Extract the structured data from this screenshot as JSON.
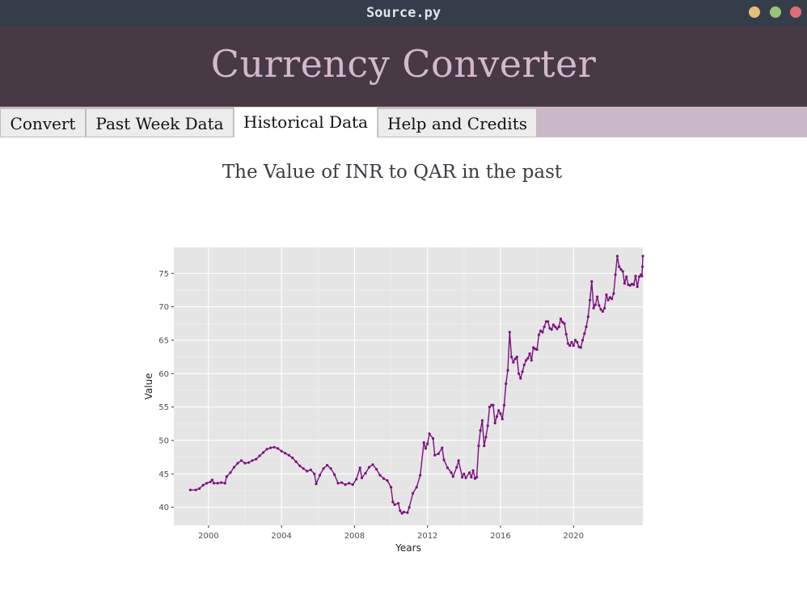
{
  "window": {
    "title": "Source.py",
    "buttons": {
      "colors": [
        "#e5c07b",
        "#98c379",
        "#e06c75"
      ]
    }
  },
  "app": {
    "title": "Currency Converter"
  },
  "tabs": [
    {
      "label": "Convert",
      "active": false
    },
    {
      "label": "Past Week Data",
      "active": false
    },
    {
      "label": "Historical Data",
      "active": true
    },
    {
      "label": "Help and Credits",
      "active": false
    }
  ],
  "main": {
    "heading": "The Value of INR to QAR in the past"
  },
  "chart_data": {
    "type": "line",
    "title": "",
    "xlabel": "Years",
    "ylabel": "Value",
    "xlim": [
      1998.1,
      2023.8
    ],
    "ylim": [
      37.3,
      78.9
    ],
    "xticks": [
      2000,
      2004,
      2008,
      2012,
      2016,
      2020
    ],
    "yticks": [
      40,
      45,
      50,
      55,
      60,
      65,
      70,
      75
    ],
    "grid": true,
    "background": "#e5e5e5",
    "line_color": "#7b0f7f",
    "series": [
      {
        "points": [
          [
            1999.0,
            42.6
          ],
          [
            1999.3,
            42.6
          ],
          [
            1999.5,
            42.8
          ],
          [
            1999.7,
            43.3
          ],
          [
            1999.9,
            43.6
          ],
          [
            2000.1,
            43.8
          ],
          [
            2000.2,
            44.1
          ],
          [
            2000.3,
            43.6
          ],
          [
            2000.5,
            43.6
          ],
          [
            2000.7,
            43.7
          ],
          [
            2000.9,
            43.6
          ],
          [
            2001.0,
            44.6
          ],
          [
            2001.2,
            45.2
          ],
          [
            2001.4,
            46.0
          ],
          [
            2001.6,
            46.6
          ],
          [
            2001.8,
            47.0
          ],
          [
            2002.0,
            46.6
          ],
          [
            2002.2,
            46.7
          ],
          [
            2002.4,
            47.0
          ],
          [
            2002.6,
            47.2
          ],
          [
            2002.8,
            47.7
          ],
          [
            2003.0,
            48.2
          ],
          [
            2003.2,
            48.7
          ],
          [
            2003.4,
            48.9
          ],
          [
            2003.6,
            49.0
          ],
          [
            2003.8,
            48.8
          ],
          [
            2004.0,
            48.4
          ],
          [
            2004.2,
            48.1
          ],
          [
            2004.4,
            47.8
          ],
          [
            2004.6,
            47.4
          ],
          [
            2004.8,
            46.8
          ],
          [
            2005.0,
            46.2
          ],
          [
            2005.2,
            45.8
          ],
          [
            2005.4,
            45.4
          ],
          [
            2005.6,
            45.6
          ],
          [
            2005.8,
            45.0
          ],
          [
            2005.9,
            43.5
          ],
          [
            2006.1,
            44.8
          ],
          [
            2006.3,
            45.8
          ],
          [
            2006.5,
            46.3
          ],
          [
            2006.7,
            45.8
          ],
          [
            2006.9,
            44.9
          ],
          [
            2007.1,
            43.6
          ],
          [
            2007.3,
            43.7
          ],
          [
            2007.5,
            43.4
          ],
          [
            2007.7,
            43.6
          ],
          [
            2007.9,
            43.4
          ],
          [
            2008.1,
            44.2
          ],
          [
            2008.3,
            45.9
          ],
          [
            2008.4,
            44.4
          ],
          [
            2008.6,
            45.1
          ],
          [
            2008.8,
            46.0
          ],
          [
            2009.0,
            46.4
          ],
          [
            2009.2,
            45.7
          ],
          [
            2009.4,
            44.8
          ],
          [
            2009.6,
            44.3
          ],
          [
            2009.8,
            44.0
          ],
          [
            2010.0,
            43.0
          ],
          [
            2010.1,
            40.8
          ],
          [
            2010.2,
            40.4
          ],
          [
            2010.4,
            40.6
          ],
          [
            2010.5,
            39.5
          ],
          [
            2010.6,
            39.1
          ],
          [
            2010.7,
            39.3
          ],
          [
            2010.9,
            39.2
          ],
          [
            2011.0,
            40.0
          ],
          [
            2011.2,
            42.1
          ],
          [
            2011.4,
            43.0
          ],
          [
            2011.6,
            44.8
          ],
          [
            2011.8,
            49.7
          ],
          [
            2011.9,
            48.8
          ],
          [
            2012.0,
            49.5
          ],
          [
            2012.1,
            51.0
          ],
          [
            2012.3,
            50.3
          ],
          [
            2012.4,
            47.8
          ],
          [
            2012.6,
            48.0
          ],
          [
            2012.8,
            48.9
          ],
          [
            2012.9,
            47.1
          ],
          [
            2013.1,
            45.9
          ],
          [
            2013.3,
            45.2
          ],
          [
            2013.4,
            44.6
          ],
          [
            2013.6,
            46.0
          ],
          [
            2013.7,
            47.0
          ],
          [
            2013.9,
            44.5
          ],
          [
            2014.0,
            45.0
          ],
          [
            2014.1,
            44.4
          ],
          [
            2014.3,
            45.2
          ],
          [
            2014.4,
            44.5
          ],
          [
            2014.5,
            45.5
          ],
          [
            2014.6,
            44.3
          ],
          [
            2014.7,
            44.5
          ],
          [
            2014.8,
            49.2
          ],
          [
            2014.9,
            51.5
          ],
          [
            2015.0,
            53.0
          ],
          [
            2015.1,
            49.2
          ],
          [
            2015.2,
            50.5
          ],
          [
            2015.3,
            52.2
          ],
          [
            2015.4,
            55.0
          ],
          [
            2015.5,
            55.3
          ],
          [
            2015.6,
            55.3
          ],
          [
            2015.7,
            52.6
          ],
          [
            2015.8,
            53.6
          ],
          [
            2015.9,
            54.5
          ],
          [
            2016.0,
            54.0
          ],
          [
            2016.1,
            53.2
          ],
          [
            2016.2,
            55.3
          ],
          [
            2016.3,
            58.5
          ],
          [
            2016.4,
            60.5
          ],
          [
            2016.5,
            66.2
          ],
          [
            2016.6,
            62.5
          ],
          [
            2016.7,
            61.7
          ],
          [
            2016.8,
            62.2
          ],
          [
            2016.9,
            62.5
          ],
          [
            2017.0,
            60.0
          ],
          [
            2017.1,
            59.3
          ],
          [
            2017.2,
            60.3
          ],
          [
            2017.3,
            61.3
          ],
          [
            2017.4,
            62.0
          ],
          [
            2017.5,
            62.3
          ],
          [
            2017.6,
            63.0
          ],
          [
            2017.7,
            62.0
          ],
          [
            2017.8,
            63.9
          ],
          [
            2017.9,
            63.7
          ],
          [
            2018.0,
            63.6
          ],
          [
            2018.1,
            65.8
          ],
          [
            2018.2,
            66.4
          ],
          [
            2018.3,
            66.2
          ],
          [
            2018.4,
            67.0
          ],
          [
            2018.5,
            67.8
          ],
          [
            2018.6,
            67.8
          ],
          [
            2018.7,
            66.8
          ],
          [
            2018.8,
            66.6
          ],
          [
            2018.9,
            67.3
          ],
          [
            2019.0,
            67.0
          ],
          [
            2019.1,
            66.7
          ],
          [
            2019.2,
            67.0
          ],
          [
            2019.3,
            68.2
          ],
          [
            2019.4,
            67.7
          ],
          [
            2019.5,
            67.5
          ],
          [
            2019.6,
            65.9
          ],
          [
            2019.7,
            64.5
          ],
          [
            2019.8,
            64.2
          ],
          [
            2019.9,
            64.7
          ],
          [
            2020.0,
            64.2
          ],
          [
            2020.1,
            65.0
          ],
          [
            2020.2,
            64.7
          ],
          [
            2020.3,
            64.0
          ],
          [
            2020.4,
            63.9
          ],
          [
            2020.5,
            65.0
          ],
          [
            2020.6,
            66.0
          ],
          [
            2020.7,
            67.0
          ],
          [
            2020.8,
            68.5
          ],
          [
            2020.9,
            71.0
          ],
          [
            2021.0,
            73.8
          ],
          [
            2021.1,
            69.8
          ],
          [
            2021.2,
            70.3
          ],
          [
            2021.3,
            71.5
          ],
          [
            2021.4,
            70.2
          ],
          [
            2021.5,
            69.6
          ],
          [
            2021.6,
            69.3
          ],
          [
            2021.7,
            69.8
          ],
          [
            2021.8,
            71.8
          ],
          [
            2021.9,
            71.0
          ],
          [
            2022.0,
            71.4
          ],
          [
            2022.1,
            71.2
          ],
          [
            2022.2,
            72.0
          ],
          [
            2022.3,
            74.8
          ],
          [
            2022.4,
            77.6
          ],
          [
            2022.5,
            76.0
          ],
          [
            2022.6,
            75.6
          ],
          [
            2022.7,
            75.3
          ],
          [
            2022.8,
            73.5
          ],
          [
            2022.9,
            74.5
          ],
          [
            2023.0,
            73.3
          ],
          [
            2023.1,
            73.2
          ],
          [
            2023.2,
            73.4
          ],
          [
            2023.3,
            73.3
          ],
          [
            2023.4,
            74.6
          ],
          [
            2023.5,
            73.0
          ],
          [
            2023.6,
            74.5
          ],
          [
            2023.7,
            74.8
          ],
          [
            2023.75,
            74.6
          ],
          [
            2023.78,
            76.0
          ],
          [
            2023.8,
            77.6
          ]
        ]
      }
    ]
  }
}
